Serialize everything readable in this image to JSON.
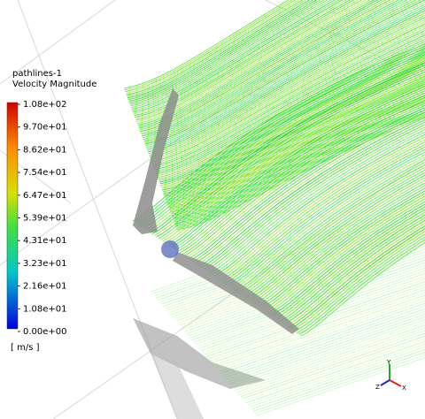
{
  "legend": {
    "title": "pathlines-1",
    "subtitle": "Velocity Magnitude",
    "ticks": [
      "1.08e+02",
      "9.70e+01",
      "8.62e+01",
      "7.54e+01",
      "6.47e+01",
      "5.39e+01",
      "4.31e+01",
      "3.23e+01",
      "2.16e+01",
      "1.08e+01",
      "0.00e+00"
    ],
    "unit": "[ m/s ]"
  },
  "axes": {
    "y": "Y",
    "z": "Z",
    "x": "X"
  }
}
